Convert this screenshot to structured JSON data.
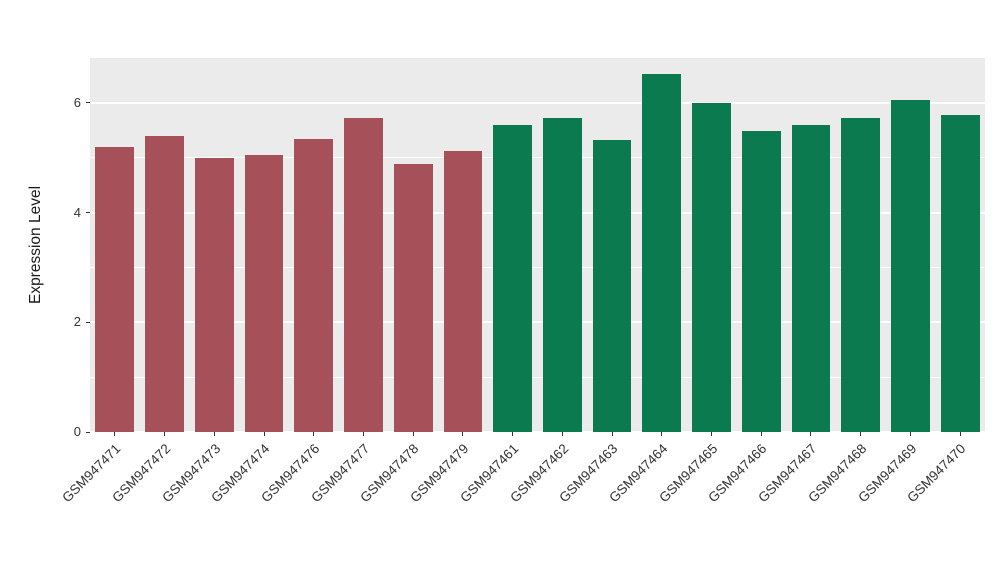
{
  "chart_data": {
    "type": "bar",
    "title": "",
    "ylabel": "Expression Level",
    "xlabel": "",
    "ylim": [
      0,
      6.82
    ],
    "yticks": [
      0,
      2,
      4,
      6
    ],
    "yticks_minor": [
      1,
      3,
      5
    ],
    "grid": "on",
    "legend": "none",
    "categories": [
      "GSM947471",
      "GSM947472",
      "GSM947473",
      "GSM947474",
      "GSM947476",
      "GSM947477",
      "GSM947478",
      "GSM947479",
      "GSM947461",
      "GSM947462",
      "GSM947463",
      "GSM947464",
      "GSM947465",
      "GSM947466",
      "GSM947467",
      "GSM947468",
      "GSM947469",
      "GSM947470"
    ],
    "values": [
      5.2,
      5.4,
      5.0,
      5.05,
      5.35,
      5.72,
      4.88,
      5.12,
      5.6,
      5.72,
      5.32,
      6.52,
      6.0,
      5.48,
      5.6,
      5.72,
      6.05,
      5.78
    ],
    "bar_colors": [
      "#A6505A",
      "#A6505A",
      "#A6505A",
      "#A6505A",
      "#A6505A",
      "#A6505A",
      "#A6505A",
      "#A6505A",
      "#0B7B4F",
      "#0B7B4F",
      "#0B7B4F",
      "#0B7B4F",
      "#0B7B4F",
      "#0B7B4F",
      "#0B7B4F",
      "#0B7B4F",
      "#0B7B4F",
      "#0B7B4F"
    ],
    "palette": {
      "group_red": "#A6505A",
      "group_green": "#0B7B4F"
    }
  },
  "colors": {
    "background": "#FFFFFF",
    "panel_bg": "#EBEBEB",
    "grid_major": "#FFFFFF",
    "grid_minor": "#FFFFFF",
    "axis_text": "#333333",
    "tick_mark": "#333333"
  }
}
